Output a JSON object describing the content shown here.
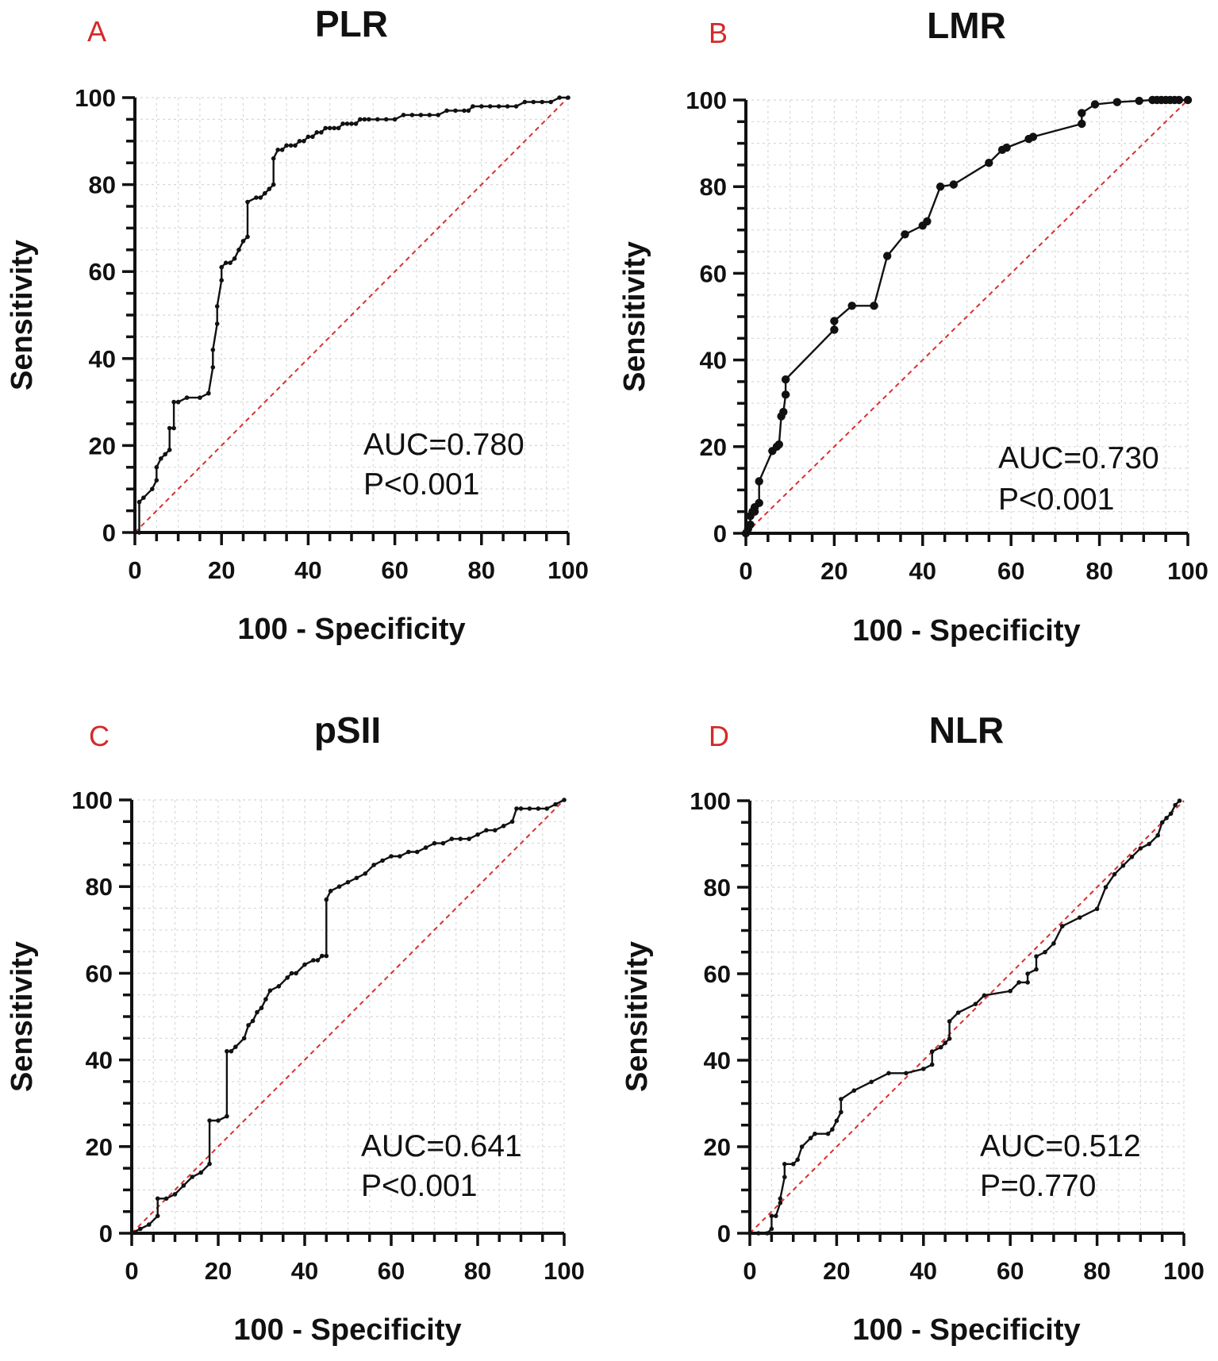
{
  "colors": {
    "panel_letter": "#d42a2a",
    "diagonal": "#d93030",
    "curve": "#111111",
    "grid": "#d8d8d8"
  },
  "chart_data": [
    {
      "panel": "A",
      "type": "line",
      "title": "PLR",
      "xlabel": "100 - Specificity",
      "ylabel": "Sensitivity",
      "xlim": [
        0,
        100
      ],
      "ylim": [
        0,
        100
      ],
      "xticks": [
        "0",
        "20",
        "40",
        "60",
        "80",
        "100"
      ],
      "yticks": [
        "0",
        "20",
        "40",
        "60",
        "80",
        "100"
      ],
      "grid": true,
      "reference_line": {
        "x": [
          0,
          100
        ],
        "y": [
          0,
          100
        ]
      },
      "annotation": [
        "AUC=0.780",
        "P<0.001"
      ],
      "series": [
        {
          "name": "PLR",
          "x": [
            0,
            1,
            1,
            2,
            4,
            5,
            5,
            6,
            7,
            8,
            8,
            9,
            9,
            10,
            12,
            15,
            17,
            17,
            18,
            18,
            19,
            19,
            20,
            20,
            21,
            22,
            23,
            24,
            25,
            26,
            26,
            28,
            29,
            30,
            31,
            32,
            32,
            33,
            34,
            35,
            36,
            37,
            38,
            39,
            40,
            41,
            42,
            43,
            44,
            45,
            46,
            47,
            48,
            49,
            50,
            51,
            52,
            53,
            54,
            56,
            58,
            60,
            62,
            64,
            66,
            68,
            70,
            72,
            74,
            76,
            77,
            78,
            80,
            82,
            84,
            86,
            88,
            90,
            92,
            94,
            96,
            98,
            100
          ],
          "y": [
            0,
            0,
            7,
            8,
            10,
            12,
            15,
            17,
            18,
            19,
            24,
            24,
            30,
            30,
            31,
            31,
            32,
            32,
            38,
            42,
            48,
            52,
            58,
            61,
            62,
            62,
            63,
            65,
            67,
            68,
            76,
            77,
            77,
            78,
            79,
            80,
            86,
            88,
            88,
            89,
            89,
            89,
            90,
            90,
            91,
            91,
            92,
            92,
            93,
            93,
            93,
            93,
            94,
            94,
            94,
            94,
            95,
            95,
            95,
            95,
            95,
            95,
            96,
            96,
            96,
            96,
            96,
            97,
            97,
            97,
            97,
            98,
            98,
            98,
            98,
            98,
            98,
            99,
            99,
            99,
            99,
            100,
            100
          ]
        }
      ]
    },
    {
      "panel": "B",
      "type": "line",
      "title": "LMR",
      "xlabel": "100 - Specificity",
      "ylabel": "Sensitivity",
      "xlim": [
        0,
        100
      ],
      "ylim": [
        0,
        100
      ],
      "xticks": [
        "0",
        "20",
        "40",
        "60",
        "80",
        "100"
      ],
      "yticks": [
        "0",
        "20",
        "40",
        "60",
        "80",
        "100"
      ],
      "grid": true,
      "reference_line": {
        "x": [
          0,
          100
        ],
        "y": [
          0,
          100
        ]
      },
      "annotation": [
        "AUC=0.730",
        "P<0.001"
      ],
      "series": [
        {
          "name": "LMR",
          "x": [
            0,
            0.5,
            1,
            1,
            1.5,
            2,
            2,
            3,
            3,
            6,
            7,
            7.5,
            8,
            8.5,
            9,
            9,
            20,
            20,
            24,
            29,
            32,
            36,
            40,
            41,
            44,
            47,
            55,
            58,
            59,
            64,
            65,
            76,
            76,
            79,
            84,
            89,
            92,
            93,
            94,
            95,
            96,
            97,
            98,
            100
          ],
          "y": [
            0,
            1,
            2,
            4,
            5,
            5,
            6,
            7,
            12,
            19,
            20,
            20.5,
            27,
            28,
            32,
            35.5,
            47,
            49,
            52.5,
            52.5,
            64,
            69,
            71,
            72,
            80,
            80.5,
            85.5,
            88.5,
            89,
            91,
            91.5,
            94.5,
            97,
            99,
            99.5,
            99.8,
            100,
            100,
            100,
            100,
            100,
            100,
            100,
            100
          ]
        }
      ]
    },
    {
      "panel": "C",
      "type": "line",
      "title": "pSII",
      "xlabel": "100 - Specificity",
      "ylabel": "Sensitivity",
      "xlim": [
        0,
        100
      ],
      "ylim": [
        0,
        100
      ],
      "xticks": [
        "0",
        "20",
        "40",
        "60",
        "80",
        "100"
      ],
      "yticks": [
        "0",
        "20",
        "40",
        "60",
        "80",
        "100"
      ],
      "grid": true,
      "reference_line": {
        "x": [
          0,
          100
        ],
        "y": [
          0,
          100
        ]
      },
      "annotation": [
        "AUC=0.641",
        "P<0.001"
      ],
      "series": [
        {
          "name": "pSII",
          "x": [
            0,
            2,
            4,
            6,
            6,
            8,
            10,
            12,
            14,
            16,
            18,
            18,
            20,
            22,
            22,
            23,
            24,
            26,
            27,
            28,
            29,
            30,
            31,
            32,
            34,
            36,
            37,
            38,
            40,
            42,
            43,
            44,
            45,
            45,
            46,
            48,
            50,
            52,
            54,
            56,
            58,
            60,
            62,
            64,
            66,
            68,
            70,
            72,
            74,
            76,
            78,
            80,
            82,
            84,
            86,
            88,
            89,
            90,
            92,
            94,
            96,
            98,
            100
          ],
          "y": [
            0,
            1,
            2,
            4,
            8,
            8,
            9,
            11,
            13,
            14,
            16,
            26,
            26,
            27,
            42,
            42,
            43,
            45,
            48,
            49,
            51,
            52,
            54,
            56,
            57,
            59,
            60,
            60,
            62,
            63,
            63,
            64,
            64,
            77,
            79,
            80,
            81,
            82,
            83,
            85,
            86,
            87,
            87,
            88,
            88,
            89,
            90,
            90,
            91,
            91,
            91,
            92,
            93,
            93,
            94,
            95,
            98,
            98,
            98,
            98,
            98,
            99,
            100
          ]
        }
      ]
    },
    {
      "panel": "D",
      "type": "line",
      "title": "NLR",
      "xlabel": "100 - Specificity",
      "ylabel": "Sensitivity",
      "xlim": [
        0,
        100
      ],
      "ylim": [
        0,
        100
      ],
      "xticks": [
        "0",
        "20",
        "40",
        "60",
        "80",
        "100"
      ],
      "yticks": [
        "0",
        "20",
        "40",
        "60",
        "80",
        "100"
      ],
      "grid": true,
      "reference_line": {
        "x": [
          0,
          100
        ],
        "y": [
          0,
          100
        ]
      },
      "annotation": [
        "AUC=0.512",
        "P=0.770"
      ],
      "series": [
        {
          "name": "NLR",
          "x": [
            0,
            2,
            4,
            5,
            5,
            6,
            7,
            7,
            8,
            8,
            10,
            11,
            12,
            14,
            15,
            18,
            19,
            20,
            21,
            21,
            24,
            28,
            32,
            36,
            40,
            42,
            42,
            44,
            45,
            46,
            46,
            48,
            52,
            54,
            60,
            62,
            64,
            64,
            66,
            66,
            68,
            70,
            72,
            72,
            76,
            80,
            82,
            84,
            86,
            88,
            90,
            92,
            94,
            95,
            96,
            97,
            98,
            99
          ],
          "y": [
            0,
            0,
            0,
            1,
            4,
            4,
            7,
            8,
            13,
            16,
            16,
            17,
            20,
            22,
            23,
            23,
            24,
            26,
            28,
            31,
            33,
            35,
            37,
            37,
            38,
            39,
            42,
            43,
            44,
            45,
            49,
            51,
            53,
            55,
            56,
            58,
            58,
            60,
            61,
            64,
            65,
            67,
            71,
            71,
            73,
            75,
            80,
            83,
            85,
            87,
            89,
            90,
            92,
            95,
            96,
            97,
            99,
            100
          ]
        }
      ]
    }
  ]
}
